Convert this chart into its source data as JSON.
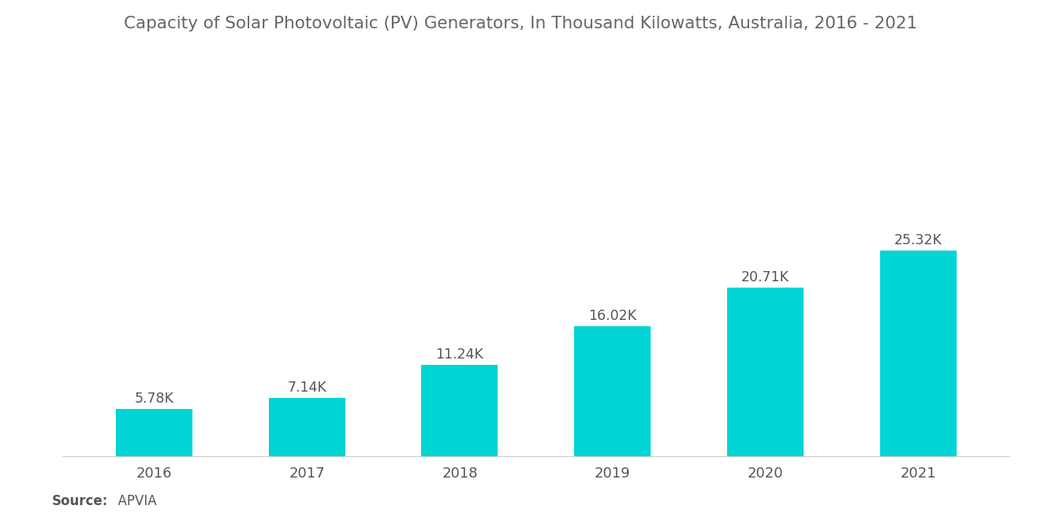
{
  "title": "Capacity of Solar Photovoltaic (PV) Generators, In Thousand Kilowatts, Australia, 2016 - 2021",
  "categories": [
    "2016",
    "2017",
    "2018",
    "2019",
    "2020",
    "2021"
  ],
  "values": [
    5.78,
    7.14,
    11.24,
    16.02,
    20.71,
    25.32
  ],
  "labels": [
    "5.78K",
    "7.14K",
    "11.24K",
    "16.02K",
    "20.71K",
    "25.32K"
  ],
  "bar_color": "#00D4D4",
  "background_color": "#FFFFFF",
  "title_color": "#666666",
  "label_color": "#555555",
  "tick_color": "#555555",
  "source_bold": "Source:",
  "source_normal": "  APVIA",
  "title_fontsize": 15.5,
  "label_fontsize": 12.5,
  "tick_fontsize": 13,
  "source_fontsize": 12,
  "ylim": [
    0,
    42
  ],
  "bar_width": 0.5
}
